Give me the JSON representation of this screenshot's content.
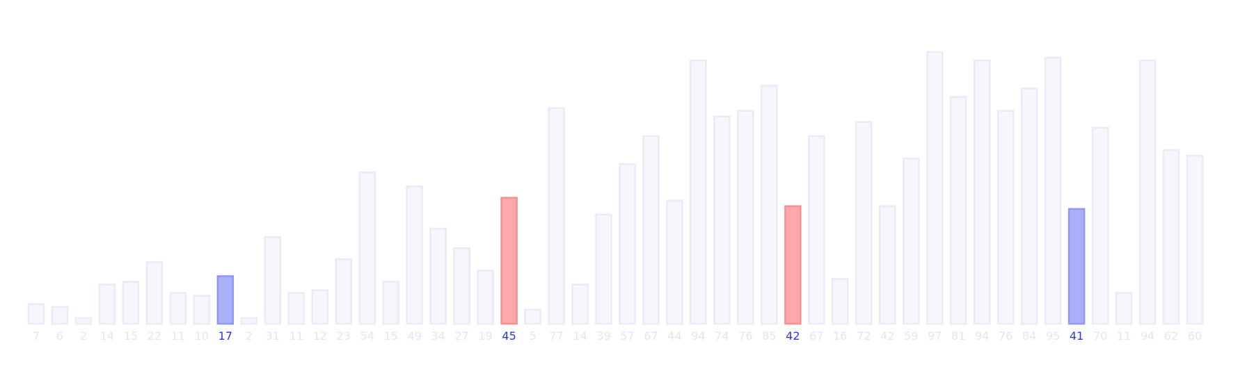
{
  "chart_data": {
    "type": "bar",
    "title": "",
    "xlabel": "",
    "ylabel": "",
    "ylim": [
      0,
      97
    ],
    "grid": false,
    "legend": "none",
    "categories": [
      "7",
      "6",
      "2",
      "14",
      "15",
      "22",
      "11",
      "10",
      "17",
      "2",
      "31",
      "11",
      "12",
      "23",
      "54",
      "15",
      "49",
      "34",
      "27",
      "19",
      "45",
      "5",
      "77",
      "14",
      "39",
      "57",
      "67",
      "44",
      "94",
      "74",
      "76",
      "85",
      "42",
      "67",
      "16",
      "72",
      "42",
      "59",
      "97",
      "81",
      "94",
      "76",
      "84",
      "95",
      "41",
      "70",
      "11",
      "94",
      "62",
      "60"
    ],
    "values": [
      7,
      6,
      2,
      14,
      15,
      22,
      11,
      10,
      17,
      2,
      31,
      11,
      12,
      23,
      54,
      15,
      49,
      34,
      27,
      19,
      45,
      5,
      77,
      14,
      39,
      57,
      67,
      44,
      94,
      74,
      76,
      85,
      42,
      67,
      16,
      72,
      42,
      59,
      97,
      81,
      94,
      76,
      84,
      95,
      41,
      70,
      11,
      94,
      62,
      60
    ],
    "highlights": {
      "8": "blue",
      "20": "red",
      "32": "red",
      "44": "blue"
    },
    "colors": {
      "default_fill": "#f6f6fc",
      "default_stroke": "#eaeaf8",
      "default_label": "#e4e4f6",
      "blue_fill": "#aab0f8",
      "blue_stroke": "#8f97f2",
      "red_fill": "#fda9aa",
      "red_stroke": "#f58f91",
      "highlight_label": "#2a36e6"
    }
  }
}
